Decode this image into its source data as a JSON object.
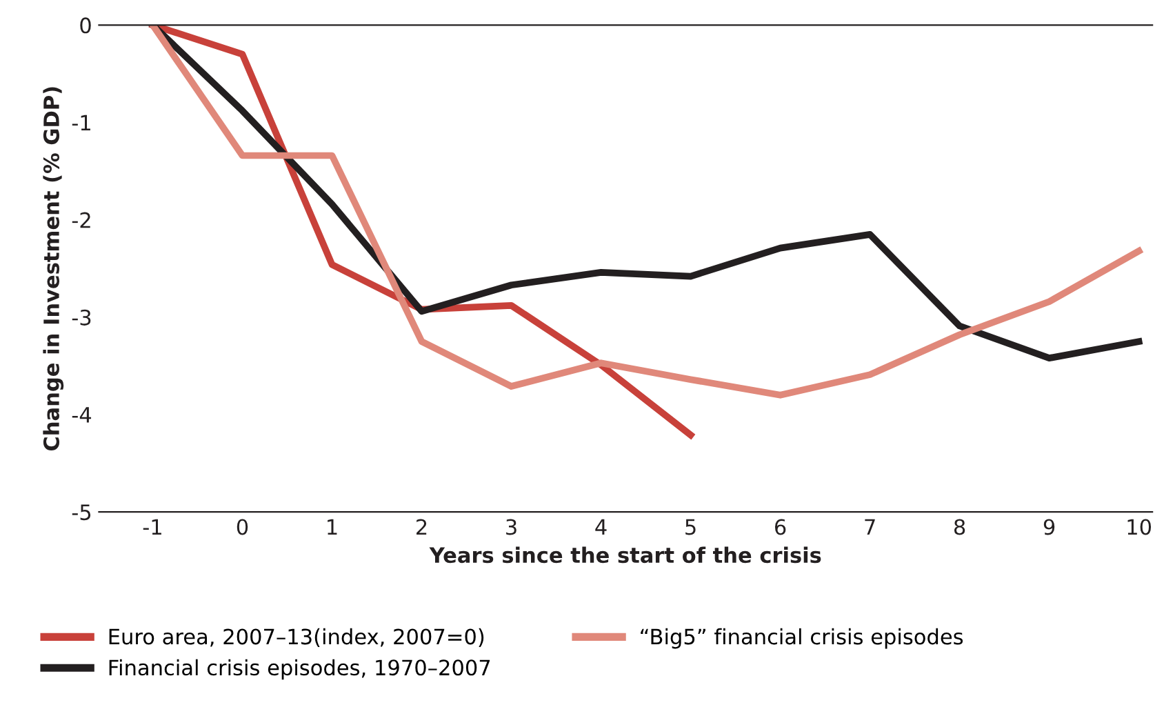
{
  "chart_data": {
    "type": "line",
    "xlabel": "Years since the start of the crisis",
    "ylabel": "Change in Investment (% GDP)",
    "categories": [
      "-1",
      "0",
      "1",
      "2",
      "3",
      "4",
      "5",
      "6",
      "7",
      "8",
      "9",
      "10"
    ],
    "series": [
      {
        "name": "Euro area, 2007–13(index, 2007=0)",
        "color": "#c8413a",
        "values": [
          0,
          -0.3,
          -2.46,
          -2.92,
          -2.88,
          -3.49,
          -4.21,
          null,
          null,
          null,
          null,
          null
        ]
      },
      {
        "name": "Financial crisis episodes, 1970–2007",
        "color": "#231f20",
        "values": [
          0,
          -0.88,
          -1.84,
          -2.94,
          -2.67,
          -2.54,
          -2.58,
          -2.29,
          -2.15,
          -3.09,
          -3.42,
          -3.25
        ]
      },
      {
        "name": "“Big5” financial crisis episodes",
        "color": "#e0887a",
        "values": [
          0,
          -1.34,
          -1.34,
          -3.25,
          -3.71,
          -3.47,
          -3.64,
          -3.8,
          -3.59,
          -3.18,
          -2.84,
          -2.32
        ]
      }
    ],
    "ylim": [
      -5,
      0
    ],
    "yticks": [
      {
        "value": -5,
        "label": "-5"
      },
      {
        "value": -4,
        "label": "-4"
      },
      {
        "value": -3,
        "label": "-3"
      },
      {
        "value": -2,
        "label": "-2"
      },
      {
        "value": -1,
        "label": "-1"
      },
      0
    ],
    "grid": false,
    "legend": "bottom",
    "marker": "none",
    "line_style": "solid"
  }
}
